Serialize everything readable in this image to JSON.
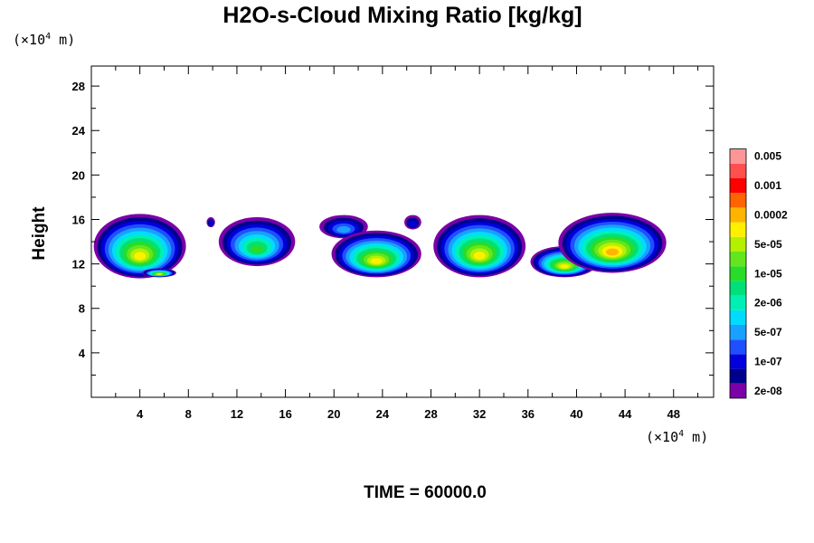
{
  "chart_data": {
    "type": "heatmap",
    "title": "H2O-s-Cloud Mixing Ratio [kg/kg]",
    "ylabel": "Height",
    "x_unit": {
      "prefix": "(×10",
      "exp": "4",
      "suffix": " m)"
    },
    "y_unit": {
      "prefix": "(×10",
      "exp": "4",
      "suffix": " m)"
    },
    "xlim": [
      0,
      51.3
    ],
    "ylim": [
      0,
      29.8
    ],
    "x_ticks": [
      4,
      8,
      12,
      16,
      20,
      24,
      28,
      32,
      36,
      40,
      44,
      48
    ],
    "y_ticks": [
      4,
      8,
      12,
      16,
      20,
      24,
      28
    ],
    "time_label": "TIME = 60000.0",
    "colorbar": {
      "colors": [
        "#7a00a8",
        "#00008c",
        "#0000dc",
        "#1e50ff",
        "#1aa0ff",
        "#00dcff",
        "#00f0b4",
        "#00e078",
        "#28dc28",
        "#64e61e",
        "#b4f000",
        "#fff000",
        "#ffb400",
        "#ff6400",
        "#ff0000",
        "#ff5050",
        "#ff9696"
      ],
      "labels": [
        "2e-08",
        "1e-07",
        "5e-07",
        "2e-06",
        "1e-05",
        "5e-05",
        "0.0002",
        "0.001",
        "0.005"
      ]
    },
    "cloud_regions": [
      {
        "x": [
          0.2,
          7.8
        ],
        "y": [
          10.7,
          16.5
        ],
        "max_level": 11
      },
      {
        "x": [
          4.2,
          7.0
        ],
        "y": [
          10.8,
          11.6
        ],
        "max_level": 11
      },
      {
        "x": [
          9.5,
          10.2
        ],
        "y": [
          15.3,
          16.2
        ],
        "max_level": 2
      },
      {
        "x": [
          10.5,
          16.8
        ],
        "y": [
          11.8,
          16.2
        ],
        "max_level": 8
      },
      {
        "x": [
          18.8,
          22.8
        ],
        "y": [
          14.3,
          16.4
        ],
        "max_level": 4
      },
      {
        "x": [
          19.8,
          27.2
        ],
        "y": [
          10.8,
          15.0
        ],
        "max_level": 11
      },
      {
        "x": [
          25.8,
          27.2
        ],
        "y": [
          15.1,
          16.4
        ],
        "max_level": 2
      },
      {
        "x": [
          28.2,
          35.8
        ],
        "y": [
          10.8,
          16.4
        ],
        "max_level": 11
      },
      {
        "x": [
          36.2,
          41.8
        ],
        "y": [
          10.8,
          13.6
        ],
        "max_level": 11
      },
      {
        "x": [
          38.5,
          47.4
        ],
        "y": [
          11.2,
          16.6
        ],
        "max_level": 12
      }
    ]
  }
}
